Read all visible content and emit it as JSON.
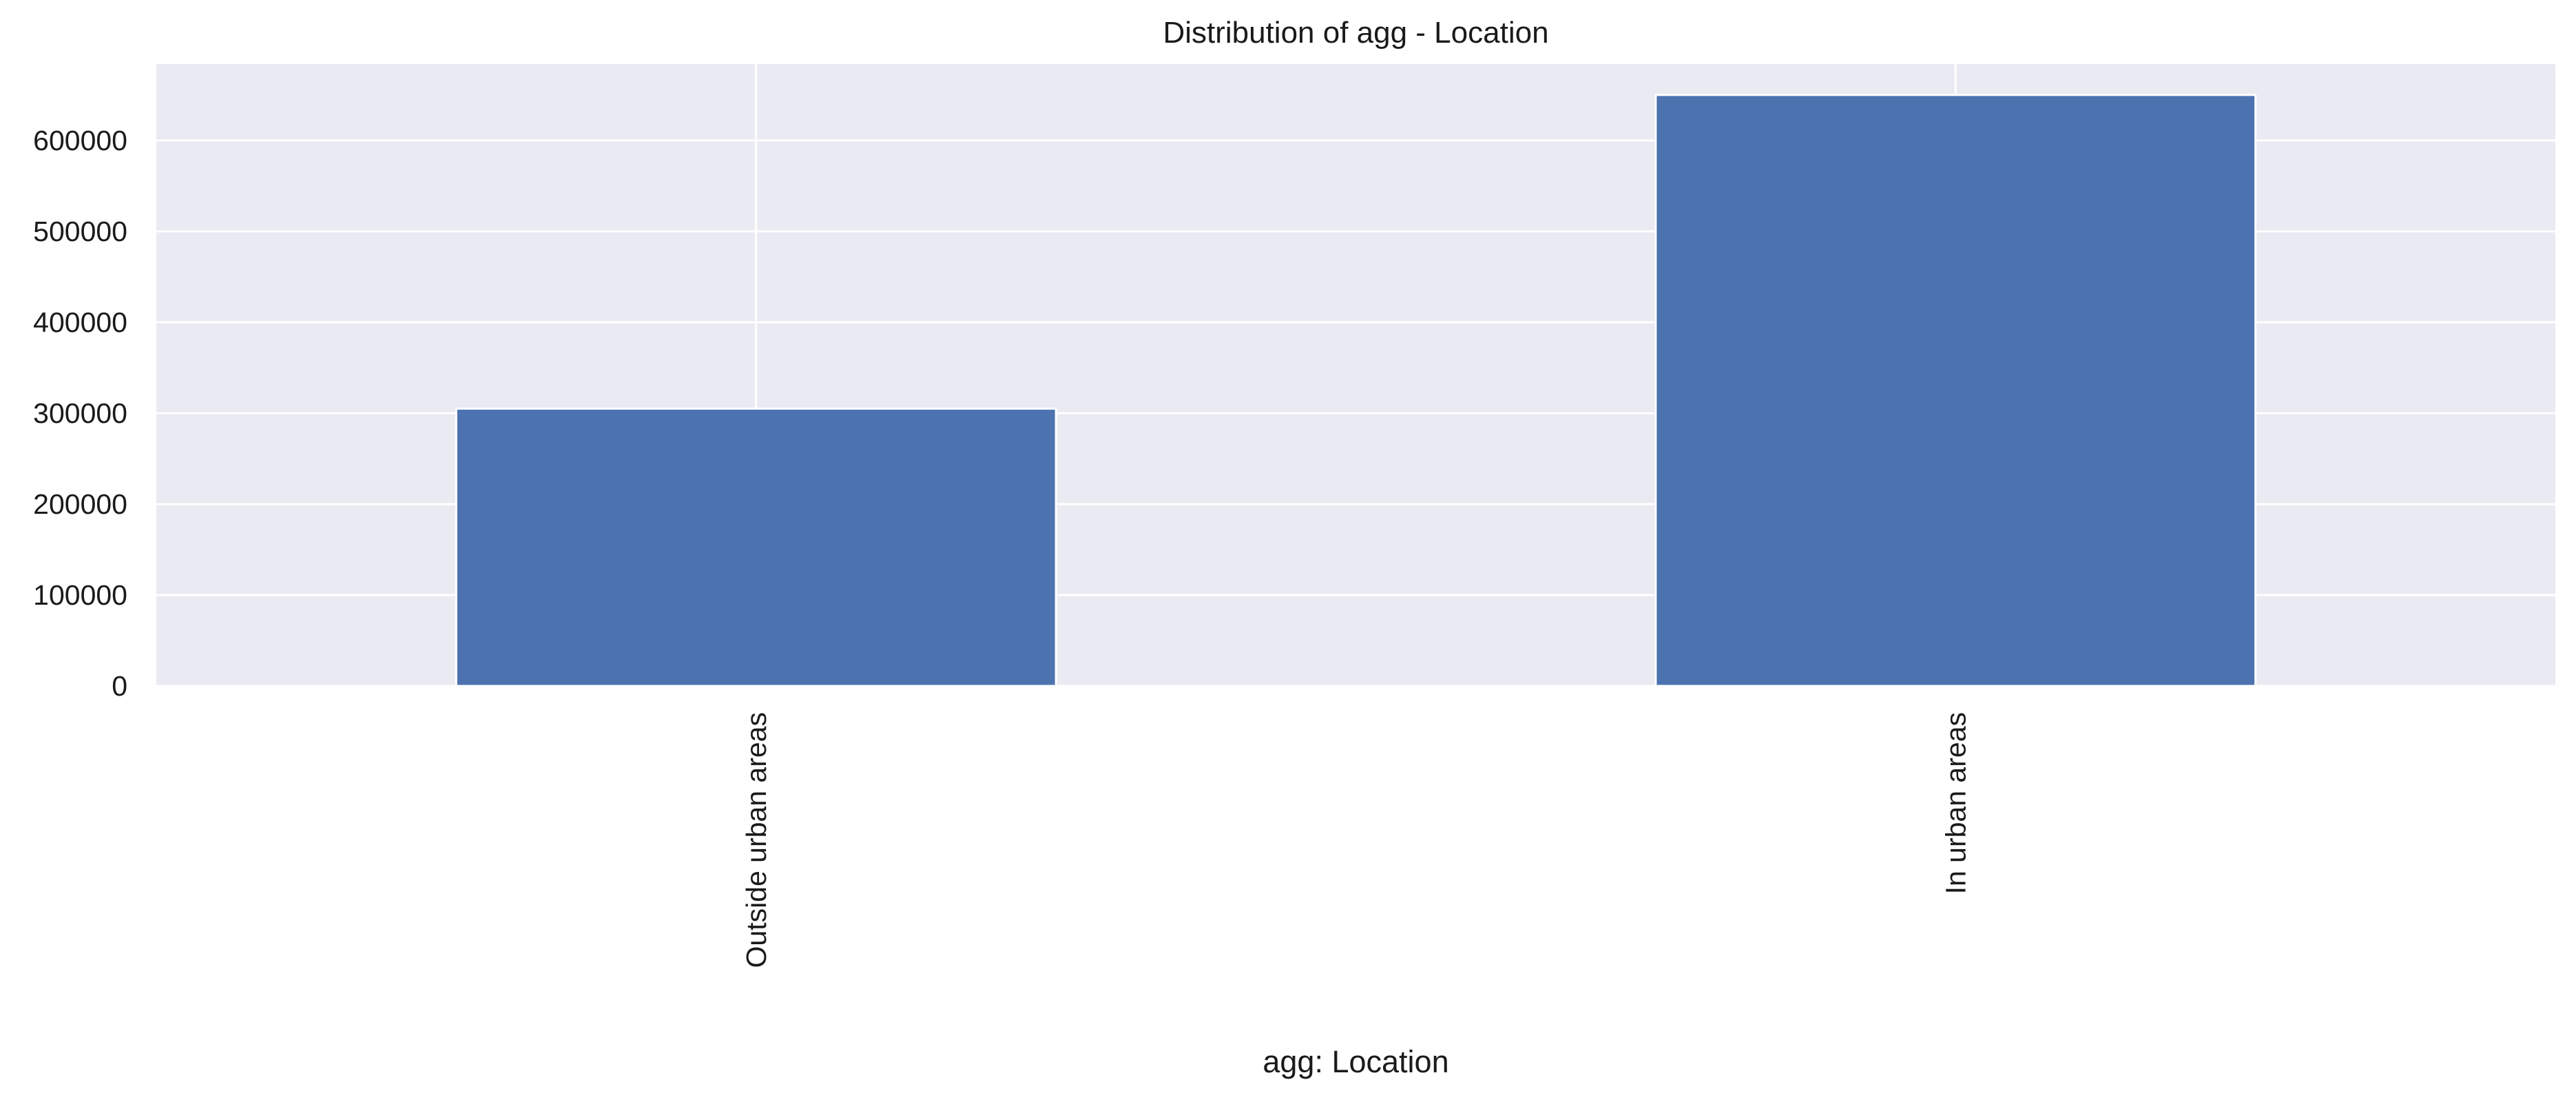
{
  "chart_data": {
    "type": "bar",
    "title": "Distribution of agg - Location",
    "xlabel": "agg: Location",
    "ylabel": "",
    "categories": [
      "Outside urban areas",
      "In urban areas"
    ],
    "values": [
      305000,
      650000
    ],
    "ylim": [
      0,
      684000
    ],
    "yticks": [
      0,
      100000,
      200000,
      300000,
      400000,
      500000,
      600000
    ],
    "ytick_labels": [
      "0",
      "100000",
      "200000",
      "300000",
      "400000",
      "500000",
      "600000"
    ],
    "grid": true,
    "legend": "none",
    "colors": {
      "bar": "#4c72b0",
      "plot_background": "#eaeaf2",
      "grid": "#ffffff",
      "page_background": "#ffffff"
    }
  }
}
